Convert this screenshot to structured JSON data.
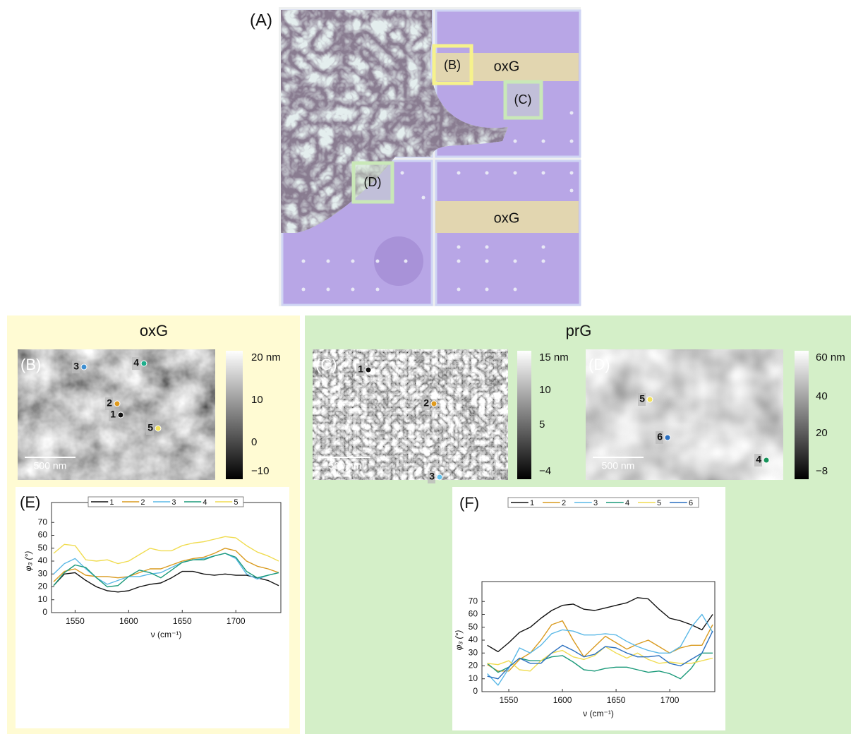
{
  "figure": {
    "panel_a": {
      "label": "(A)",
      "tags": [
        "(B)",
        "oxG",
        "(C)",
        "(D)",
        "oxG"
      ]
    },
    "sections": [
      "oxG",
      "prG"
    ],
    "maps": [
      {
        "label": "(B)",
        "scale_bar": "500 nm",
        "colorbar": [
          "20 nm",
          "10",
          "0",
          "−10"
        ],
        "points": [
          {
            "label": "3",
            "color": "#3d8fd1"
          },
          {
            "label": "4",
            "color": "#1fae8c"
          },
          {
            "label": "2",
            "color": "#e09a1c"
          },
          {
            "label": "1",
            "color": "#111111"
          },
          {
            "label": "5",
            "color": "#f2e15c"
          }
        ]
      },
      {
        "label": "(C)",
        "scale_bar": "500 nm",
        "colorbar": [
          "15 nm",
          "10",
          "5",
          "−4"
        ],
        "points": [
          {
            "label": "1",
            "color": "#111111"
          },
          {
            "label": "2",
            "color": "#e09a1c"
          },
          {
            "label": "3",
            "color": "#66c4ee"
          }
        ]
      },
      {
        "label": "(D)",
        "scale_bar": "500 nm",
        "colorbar": [
          "60 nm",
          "40",
          "20",
          "−8"
        ],
        "points": [
          {
            "label": "5",
            "color": "#f2e15c"
          },
          {
            "label": "6",
            "color": "#2a6fbf"
          },
          {
            "label": "4",
            "color": "#16935a"
          }
        ]
      }
    ]
  },
  "chart_data": [
    {
      "type": "line",
      "label": "(E)",
      "x_label": "ν (cm⁻¹)",
      "y_label": "φ₃ (°)",
      "x": [
        1530,
        1540,
        1550,
        1560,
        1570,
        1580,
        1590,
        1600,
        1610,
        1620,
        1630,
        1640,
        1650,
        1660,
        1670,
        1680,
        1690,
        1700,
        1710,
        1720,
        1730,
        1740
      ],
      "xlim": [
        1528,
        1742
      ],
      "ylim": [
        0,
        80
      ],
      "xticks": [
        1550,
        1600,
        1650,
        1700
      ],
      "yticks": [
        0,
        10,
        20,
        30,
        40,
        50,
        60,
        70
      ],
      "series": [
        {
          "name": "1",
          "color": "#111111",
          "values": [
            21,
            30,
            31,
            25,
            20,
            17,
            16,
            17,
            20,
            22,
            23,
            27,
            32,
            32,
            30,
            29,
            30,
            29,
            29,
            27,
            25,
            21
          ]
        },
        {
          "name": "2",
          "color": "#d99a1e",
          "values": [
            24,
            32,
            34,
            29,
            28,
            28,
            27,
            28,
            31,
            34,
            34,
            37,
            40,
            42,
            43,
            46,
            50,
            48,
            40,
            36,
            34,
            31
          ]
        },
        {
          "name": "3",
          "color": "#5ab8e6",
          "values": [
            30,
            38,
            42,
            34,
            27,
            22,
            25,
            28,
            28,
            30,
            31,
            35,
            39,
            41,
            42,
            44,
            46,
            42,
            30,
            26,
            29,
            31
          ]
        },
        {
          "name": "4",
          "color": "#1b9a7a",
          "values": [
            21,
            31,
            37,
            35,
            27,
            20,
            21,
            28,
            33,
            31,
            27,
            33,
            39,
            41,
            41,
            44,
            46,
            43,
            32,
            27,
            29,
            31
          ]
        },
        {
          "name": "5",
          "color": "#f0dc50",
          "values": [
            46,
            53,
            52,
            41,
            40,
            41,
            38,
            40,
            45,
            50,
            48,
            48,
            52,
            54,
            55,
            57,
            59,
            58,
            52,
            47,
            44,
            40
          ]
        }
      ]
    },
    {
      "type": "line",
      "label": "(F)",
      "x_label": "ν (cm⁻¹)",
      "y_label": "φ₃ (°)",
      "x": [
        1530,
        1540,
        1550,
        1560,
        1570,
        1580,
        1590,
        1600,
        1610,
        1620,
        1630,
        1640,
        1650,
        1660,
        1670,
        1680,
        1690,
        1700,
        1710,
        1720,
        1730,
        1740
      ],
      "xlim": [
        1525,
        1742
      ],
      "ylim": [
        0,
        80
      ],
      "xticks": [
        1550,
        1600,
        1650,
        1700
      ],
      "yticks": [
        0,
        10,
        20,
        30,
        40,
        50,
        60,
        70
      ],
      "series": [
        {
          "name": "1",
          "color": "#111111",
          "values": [
            36,
            31,
            38,
            46,
            50,
            57,
            63,
            67,
            68,
            64,
            63,
            65,
            67,
            69,
            73,
            72,
            64,
            57,
            55,
            52,
            48,
            60
          ]
        },
        {
          "name": "2",
          "color": "#d99a1e",
          "values": [
            21,
            16,
            16,
            25,
            30,
            40,
            52,
            55,
            40,
            27,
            35,
            43,
            38,
            33,
            37,
            40,
            35,
            30,
            34,
            36,
            36,
            52
          ]
        },
        {
          "name": "3",
          "color": "#5ab8e6",
          "values": [
            14,
            5,
            18,
            34,
            30,
            36,
            45,
            48,
            47,
            44,
            44,
            45,
            44,
            39,
            35,
            32,
            30,
            30,
            35,
            50,
            60,
            46
          ]
        },
        {
          "name": "4",
          "color": "#1b9a7a",
          "values": [
            22,
            15,
            19,
            26,
            24,
            24,
            27,
            28,
            23,
            17,
            16,
            18,
            19,
            19,
            17,
            15,
            16,
            14,
            10,
            18,
            30,
            30
          ]
        },
        {
          "name": "5",
          "color": "#f0dc50",
          "values": [
            22,
            21,
            24,
            17,
            16,
            24,
            30,
            32,
            27,
            25,
            28,
            35,
            30,
            26,
            30,
            25,
            22,
            23,
            22,
            22,
            24,
            26
          ]
        },
        {
          "name": "6",
          "color": "#2a6fbf",
          "values": [
            12,
            10,
            19,
            26,
            22,
            22,
            30,
            36,
            32,
            27,
            29,
            35,
            34,
            30,
            27,
            27,
            28,
            22,
            20,
            25,
            30,
            47
          ]
        }
      ]
    }
  ]
}
